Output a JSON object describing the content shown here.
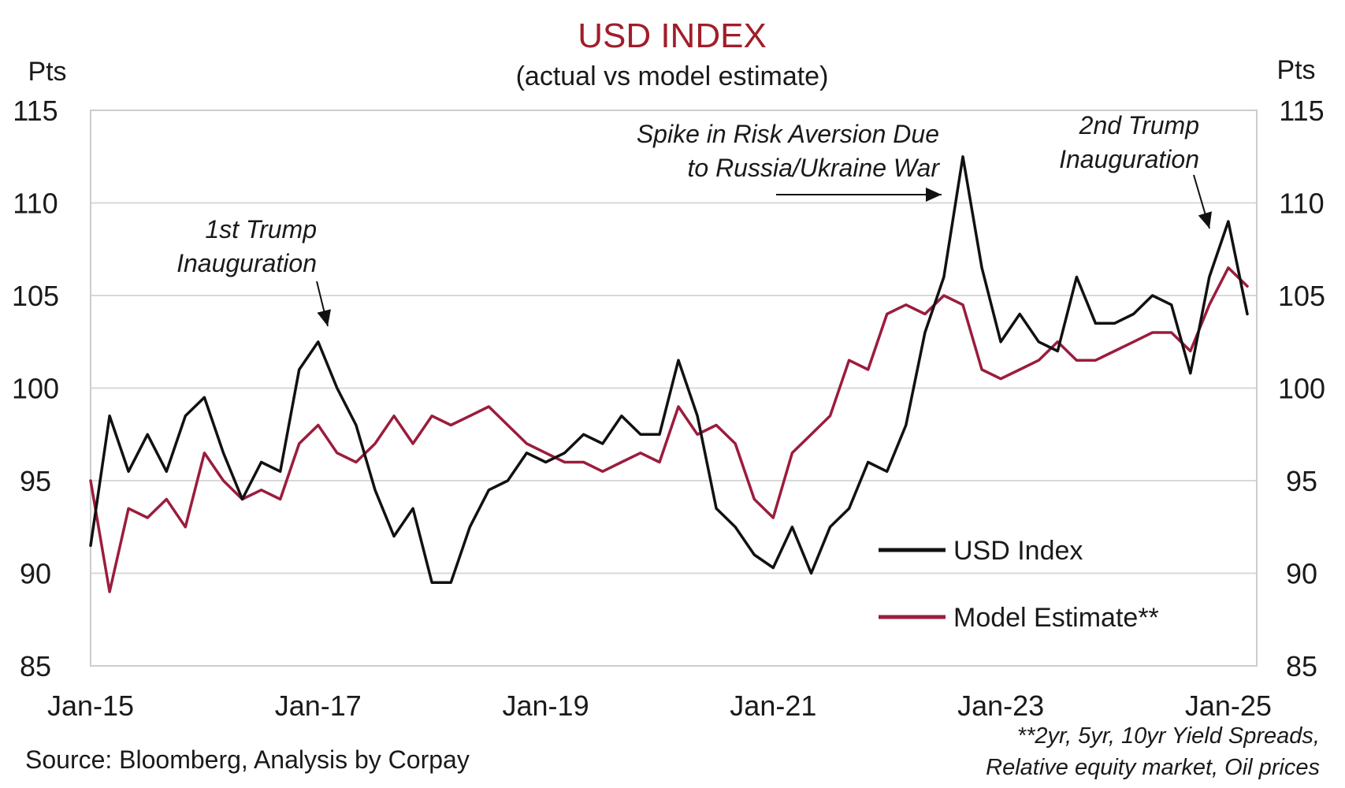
{
  "chart_data": {
    "type": "line",
    "title": "USD INDEX",
    "subtitle": "(actual vs model estimate)",
    "y_unit_left": "Pts",
    "y_unit_right": "Pts",
    "ylim": [
      85,
      115
    ],
    "xlim": [
      "2015-01",
      "2025-04"
    ],
    "yticks": [
      "115",
      "110",
      "105",
      "100",
      "95",
      "90",
      "85"
    ],
    "xticks": [
      "Jan-15",
      "Jan-17",
      "Jan-19",
      "Jan-21",
      "Jan-23",
      "Jan-25"
    ],
    "grid": true,
    "legend_position": "bottom-right",
    "x": [
      "2015-01",
      "2015-03",
      "2015-05",
      "2015-07",
      "2015-09",
      "2015-11",
      "2016-01",
      "2016-03",
      "2016-05",
      "2016-07",
      "2016-09",
      "2016-11",
      "2017-01",
      "2017-03",
      "2017-05",
      "2017-07",
      "2017-09",
      "2017-11",
      "2018-01",
      "2018-03",
      "2018-05",
      "2018-07",
      "2018-09",
      "2018-11",
      "2019-01",
      "2019-03",
      "2019-05",
      "2019-07",
      "2019-09",
      "2019-11",
      "2020-01",
      "2020-03",
      "2020-05",
      "2020-07",
      "2020-09",
      "2020-11",
      "2021-01",
      "2021-03",
      "2021-05",
      "2021-07",
      "2021-09",
      "2021-11",
      "2022-01",
      "2022-03",
      "2022-05",
      "2022-07",
      "2022-09",
      "2022-11",
      "2023-01",
      "2023-03",
      "2023-05",
      "2023-07",
      "2023-09",
      "2023-11",
      "2024-01",
      "2024-03",
      "2024-05",
      "2024-07",
      "2024-09",
      "2024-11",
      "2025-01",
      "2025-03"
    ],
    "series": [
      {
        "name": "USD Index",
        "color": "#111111",
        "values": [
          91.5,
          98.5,
          95.5,
          97.5,
          95.5,
          98.5,
          99.5,
          96.5,
          94.0,
          96.0,
          95.5,
          101.0,
          102.5,
          100.0,
          98.0,
          94.5,
          92.0,
          93.5,
          89.5,
          89.5,
          92.5,
          94.5,
          95.0,
          96.5,
          96.0,
          96.5,
          97.5,
          97.0,
          98.5,
          97.5,
          97.5,
          101.5,
          98.5,
          93.5,
          92.5,
          91.0,
          90.3,
          92.5,
          90.0,
          92.5,
          93.5,
          96.0,
          95.5,
          98.0,
          103.0,
          106.0,
          112.5,
          106.5,
          102.5,
          104.0,
          102.5,
          102.0,
          106.0,
          103.5,
          103.5,
          104.0,
          105.0,
          104.5,
          100.8,
          106.0,
          109.0,
          104.0
        ]
      },
      {
        "name": "Model Estimate**",
        "color": "#9b1c3c",
        "values": [
          95.0,
          89.0,
          93.5,
          93.0,
          94.0,
          92.5,
          96.5,
          95.0,
          94.0,
          94.5,
          94.0,
          97.0,
          98.0,
          96.5,
          96.0,
          97.0,
          98.5,
          97.0,
          98.5,
          98.0,
          98.5,
          99.0,
          98.0,
          97.0,
          96.5,
          96.0,
          96.0,
          95.5,
          96.0,
          96.5,
          96.0,
          99.0,
          97.5,
          98.0,
          97.0,
          94.0,
          93.0,
          96.5,
          97.5,
          98.5,
          101.5,
          101.0,
          104.0,
          104.5,
          104.0,
          105.0,
          104.5,
          101.0,
          100.5,
          101.0,
          101.5,
          102.5,
          101.5,
          101.5,
          102.0,
          102.5,
          103.0,
          103.0,
          102.0,
          104.5,
          106.5,
          105.5
        ]
      }
    ],
    "annotations": [
      {
        "lines": [
          "1st Trump",
          "Inauguration"
        ],
        "date": "2017-01"
      },
      {
        "lines": [
          "Spike in Risk Aversion Due",
          "to Russia/Ukraine War"
        ],
        "date": "2022-09"
      },
      {
        "lines": [
          "2nd Trump",
          "Inauguration"
        ],
        "date": "2025-01"
      }
    ],
    "source": "Source: Bloomberg, Analysis by Corpay",
    "footnote": [
      "**2yr, 5yr, 10yr Yield Spreads,",
      "Relative equity market, Oil prices"
    ]
  }
}
